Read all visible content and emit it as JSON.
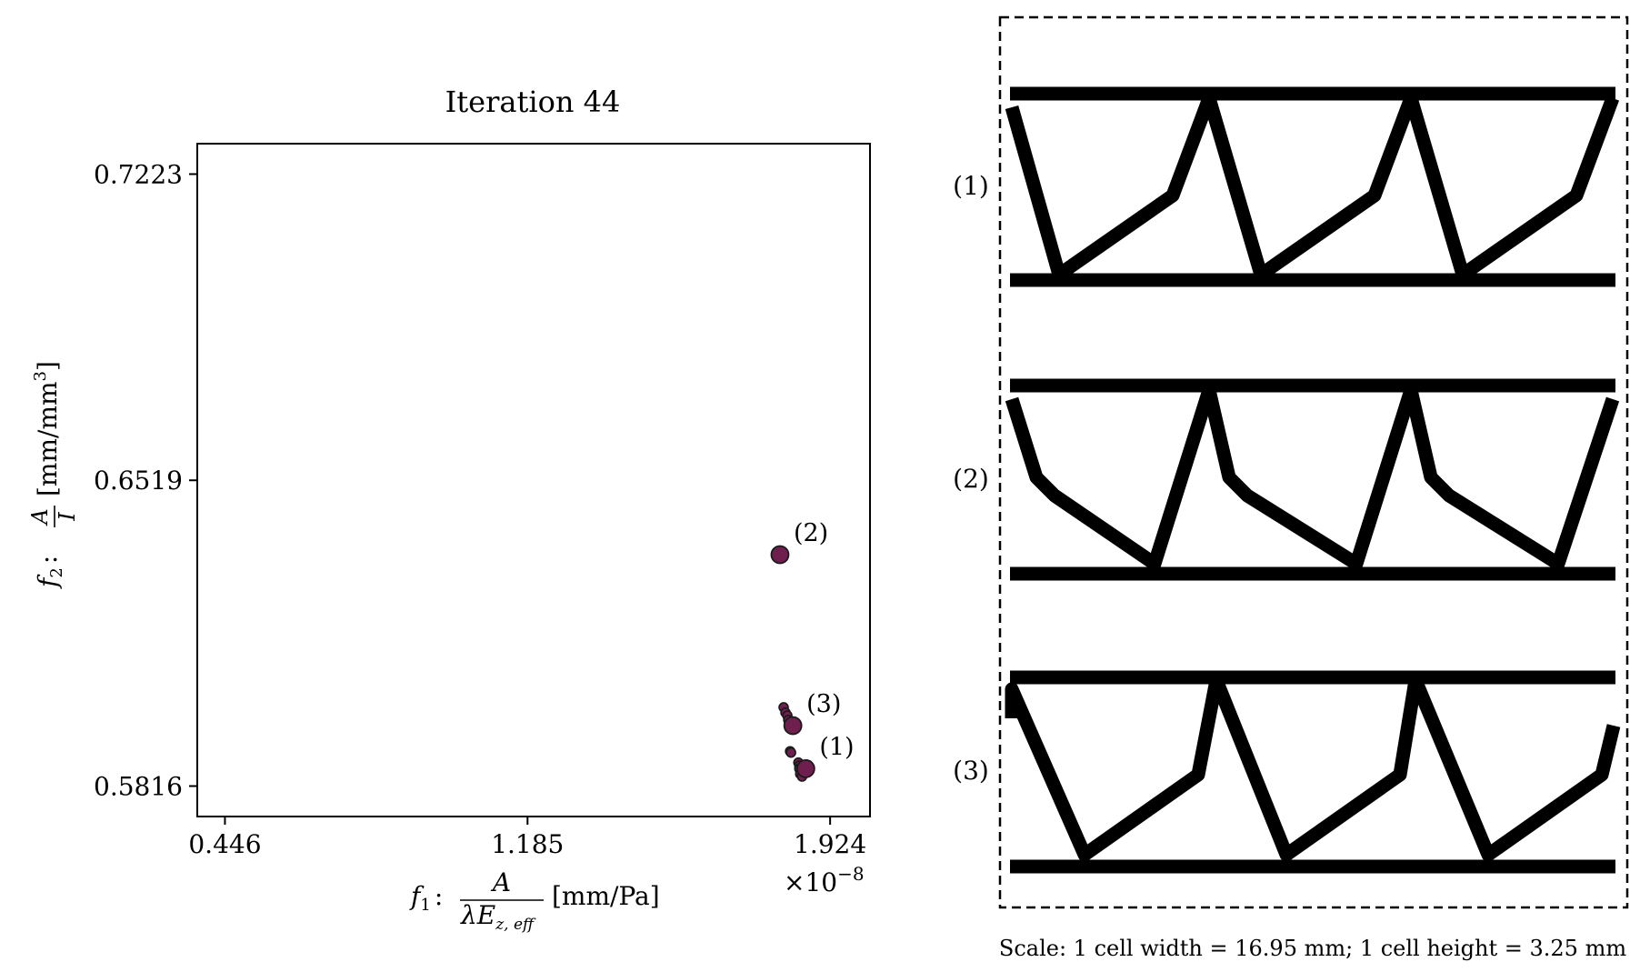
{
  "chart_data": {
    "type": "scatter",
    "title": "Iteration 44",
    "x_ticks": [
      "0.446",
      "1.185",
      "1.924"
    ],
    "x_tick_values": [
      0.446,
      1.185,
      1.924
    ],
    "x_multiplier": "×10",
    "x_multiplier_exp": "−8",
    "y_ticks": [
      "0.7223",
      "0.6519",
      "0.5816"
    ],
    "y_tick_values": [
      0.7223,
      0.6519,
      0.5816
    ],
    "xlim": [
      0.3784,
      2.0214
    ],
    "ylim": [
      0.5746,
      0.7293
    ],
    "xlabel": {
      "prefix": "f",
      "prefix_sub": "1",
      "colon": ":",
      "num": "A",
      "den_main": "λE",
      "den_sub": "z, eff",
      "unit": "[mm/Pa]"
    },
    "ylabel": {
      "prefix": "f",
      "prefix_sub": "2",
      "colon": ":",
      "num": "A",
      "den": "I",
      "unit_open": "[mm/mm",
      "unit_exp": "3",
      "unit_close": "]"
    },
    "point_color": "#6e1f4e",
    "edge_color": "#1a1a1a",
    "points": [
      {
        "x": 1.8105,
        "y": 0.5997
      },
      {
        "x": 1.815,
        "y": 0.5985
      },
      {
        "x": 1.8195,
        "y": 0.5978
      },
      {
        "x": 1.8218,
        "y": 0.5968
      },
      {
        "x": 1.8263,
        "y": 0.5896
      },
      {
        "x": 1.8285,
        "y": 0.5893
      },
      {
        "x": 1.8465,
        "y": 0.587
      },
      {
        "x": 1.8488,
        "y": 0.5863
      },
      {
        "x": 1.8488,
        "y": 0.5856
      },
      {
        "x": 1.851,
        "y": 0.5844
      },
      {
        "x": 1.8555,
        "y": 0.5838
      }
    ],
    "highlighted": [
      {
        "label": "(1)",
        "x": 1.8645,
        "y": 0.5856
      },
      {
        "label": "(2)",
        "x": 1.8015,
        "y": 0.6348
      },
      {
        "label": "(3)",
        "x": 1.833,
        "y": 0.5955
      }
    ]
  },
  "panel": {
    "labels": [
      "(1)",
      "(2)",
      "(3)"
    ],
    "scale_note": "Scale: 1 cell width = 16.95 mm; 1 cell height = 3.25 mm"
  }
}
